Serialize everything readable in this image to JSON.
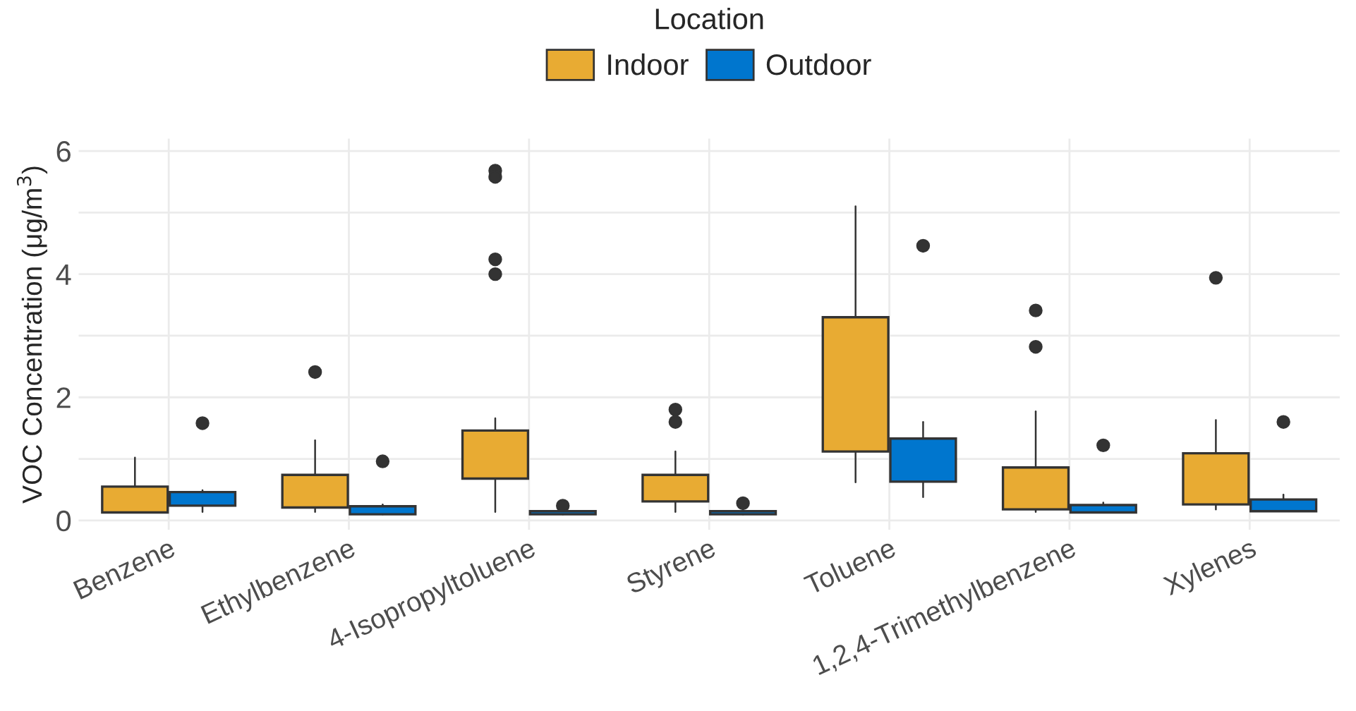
{
  "chart_data": {
    "type": "box",
    "ylabel": "VOC Concentration (μg/m$^{3}$)",
    "legend_title": "Location",
    "legend": "top",
    "categories": [
      "Benzene",
      "Ethylbenzene",
      "4-Isopropyltoluene",
      "Styrene",
      "Toluene",
      "1,2,4-Trimethylbenzene",
      "Xylenes"
    ],
    "ylim": [
      -0.15,
      6.2
    ],
    "yticks": [
      0,
      {
        "value": 1,
        "label": null
      },
      2,
      {
        "value": 3,
        "label": null
      },
      4,
      {
        "value": 5,
        "label": null
      },
      6
    ],
    "grid": true,
    "series": [
      {
        "name": "Indoor",
        "color": "#e8ab33",
        "boxes": [
          {
            "low": 0.13,
            "q1": 0.13,
            "median": 0.24,
            "q3": 0.55,
            "high": 1.02
          },
          {
            "low": 0.14,
            "q1": 0.21,
            "median": 0.53,
            "q3": 0.74,
            "high": 1.3,
            "outliers": [
              2.41
            ]
          },
          {
            "low": 0.14,
            "q1": 0.68,
            "median": 1.02,
            "q3": 1.46,
            "high": 1.66,
            "outliers": [
              5.68,
              5.58,
              4.24,
              4.0
            ]
          },
          {
            "low": 0.14,
            "q1": 0.31,
            "median": 0.5,
            "q3": 0.74,
            "high": 1.12,
            "outliers": [
              1.8,
              1.6
            ]
          },
          {
            "low": 0.62,
            "q1": 1.12,
            "median": 2.03,
            "q3": 3.3,
            "high": 5.1
          },
          {
            "low": 0.14,
            "q1": 0.18,
            "median": 0.4,
            "q3": 0.86,
            "high": 1.77,
            "outliers": [
              3.41,
              2.82
            ]
          },
          {
            "low": 0.18,
            "q1": 0.26,
            "median": 0.69,
            "q3": 1.09,
            "high": 1.63,
            "outliers": [
              3.94
            ]
          }
        ]
      },
      {
        "name": "Outdoor",
        "color": "#0076ce",
        "boxes": [
          {
            "low": 0.14,
            "q1": 0.24,
            "median": 0.36,
            "q3": 0.46,
            "high": 0.49,
            "outliers": [
              1.58
            ]
          },
          {
            "low": 0.1,
            "q1": 0.1,
            "median": 0.18,
            "q3": 0.23,
            "high": 0.26,
            "outliers": [
              0.96
            ]
          },
          {
            "low": 0.1,
            "q1": 0.1,
            "median": 0.13,
            "q3": 0.15,
            "high": 0.15,
            "outliers": [
              0.24
            ]
          },
          {
            "low": 0.1,
            "q1": 0.1,
            "median": 0.13,
            "q3": 0.15,
            "high": 0.15,
            "outliers": [
              0.28
            ]
          },
          {
            "low": 0.38,
            "q1": 0.63,
            "median": 0.88,
            "q3": 1.33,
            "high": 1.6,
            "outliers": [
              4.46
            ]
          },
          {
            "low": 0.13,
            "q1": 0.13,
            "median": 0.19,
            "q3": 0.25,
            "high": 0.29,
            "outliers": [
              1.22
            ]
          },
          {
            "low": 0.15,
            "q1": 0.15,
            "median": 0.27,
            "q3": 0.34,
            "high": 0.42,
            "outliers": [
              1.6
            ]
          }
        ]
      }
    ]
  }
}
